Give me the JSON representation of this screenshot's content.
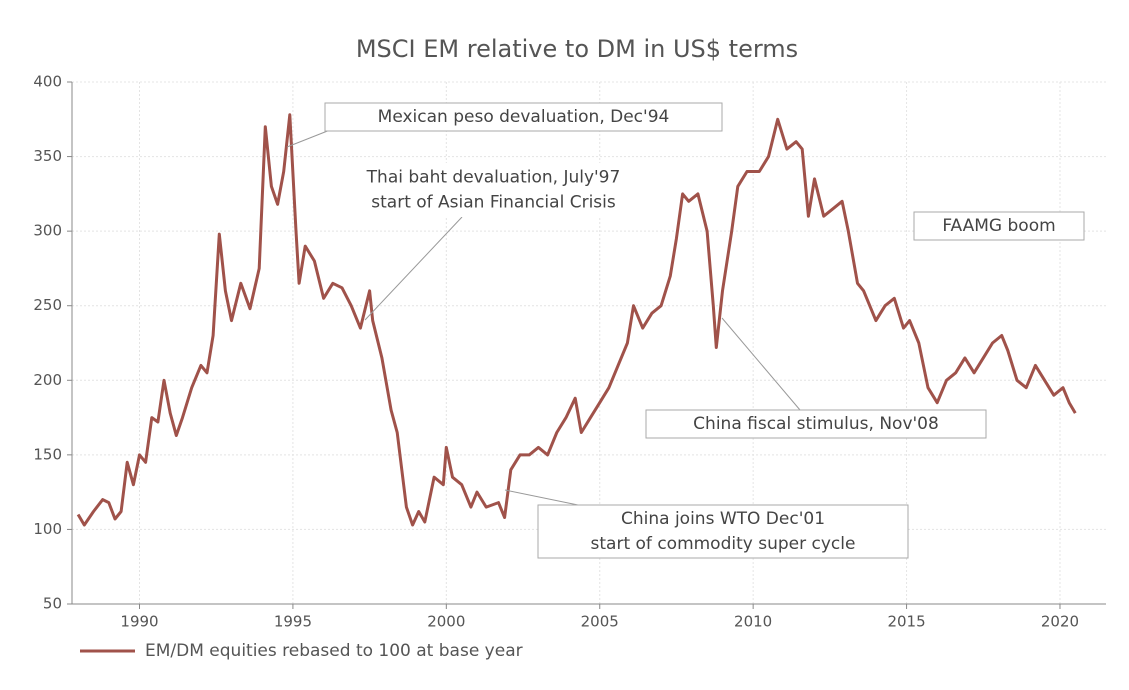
{
  "chart_data": {
    "type": "line",
    "title": "MSCI EM relative to DM in US$ terms",
    "xlim": [
      1987.8,
      2021.5
    ],
    "xticks": [
      1990,
      1995,
      2000,
      2005,
      2010,
      2015,
      2020
    ],
    "ylim": [
      50,
      400
    ],
    "yticks": [
      50,
      100,
      150,
      200,
      250,
      300,
      350,
      400
    ],
    "grid": true,
    "legend": "bottom-left",
    "annotations": [
      [
        "Mexican peso devaluation, Dec'94"
      ],
      [
        "Thai baht devaluation, July'97",
        "start of Asian Financial Crisis"
      ],
      [
        "China fiscal stimulus, Nov'08"
      ],
      [
        "China joins WTO Dec'01",
        "start of commodity super cycle"
      ],
      [
        "FAAMG boom"
      ]
    ],
    "series": [
      {
        "name": "EM/DM equities rebased to 100 at base year",
        "color": "#a0524a",
        "x": [
          1988.0,
          1988.2,
          1988.5,
          1988.8,
          1989.0,
          1989.2,
          1989.4,
          1989.6,
          1989.8,
          1990.0,
          1990.2,
          1990.4,
          1990.6,
          1990.8,
          1991.0,
          1991.2,
          1991.4,
          1991.7,
          1992.0,
          1992.2,
          1992.4,
          1992.6,
          1992.8,
          1993.0,
          1993.3,
          1993.6,
          1993.9,
          1994.1,
          1994.3,
          1994.5,
          1994.7,
          1994.9,
          1995.1,
          1995.2,
          1995.4,
          1995.7,
          1996.0,
          1996.3,
          1996.6,
          1996.9,
          1997.2,
          1997.5,
          1997.6,
          1997.9,
          1998.2,
          1998.4,
          1998.7,
          1998.9,
          1999.1,
          1999.3,
          1999.6,
          1999.9,
          2000.0,
          2000.2,
          2000.5,
          2000.8,
          2001.0,
          2001.3,
          2001.7,
          2001.9,
          2002.1,
          2002.4,
          2002.7,
          2003.0,
          2003.3,
          2003.6,
          2003.9,
          2004.2,
          2004.4,
          2004.7,
          2005.0,
          2005.3,
          2005.6,
          2005.9,
          2006.1,
          2006.4,
          2006.7,
          2007.0,
          2007.3,
          2007.5,
          2007.7,
          2007.9,
          2008.2,
          2008.5,
          2008.7,
          2008.8,
          2009.0,
          2009.3,
          2009.5,
          2009.8,
          2010.2,
          2010.5,
          2010.8,
          2011.1,
          2011.4,
          2011.6,
          2011.8,
          2012.0,
          2012.3,
          2012.6,
          2012.9,
          2013.1,
          2013.4,
          2013.6,
          2014.0,
          2014.3,
          2014.6,
          2014.9,
          2015.1,
          2015.4,
          2015.7,
          2016.0,
          2016.3,
          2016.6,
          2016.9,
          2017.2,
          2017.5,
          2017.8,
          2018.1,
          2018.3,
          2018.6,
          2018.9,
          2019.2,
          2019.5,
          2019.8,
          2020.1,
          2020.3,
          2020.5
        ],
        "values": [
          110,
          103,
          112,
          120,
          118,
          107,
          112,
          145,
          130,
          150,
          145,
          175,
          172,
          200,
          178,
          163,
          175,
          195,
          210,
          205,
          230,
          298,
          260,
          240,
          265,
          248,
          275,
          370,
          330,
          318,
          340,
          378,
          300,
          265,
          290,
          280,
          255,
          265,
          262,
          250,
          235,
          260,
          240,
          215,
          180,
          165,
          115,
          103,
          112,
          105,
          135,
          130,
          155,
          135,
          130,
          115,
          125,
          115,
          118,
          108,
          140,
          150,
          150,
          155,
          150,
          165,
          175,
          188,
          165,
          175,
          185,
          195,
          210,
          225,
          250,
          235,
          245,
          250,
          270,
          295,
          325,
          320,
          325,
          300,
          250,
          222,
          260,
          300,
          330,
          340,
          340,
          350,
          375,
          355,
          360,
          355,
          310,
          335,
          310,
          315,
          320,
          300,
          265,
          260,
          240,
          250,
          255,
          235,
          240,
          225,
          195,
          185,
          200,
          205,
          215,
          205,
          215,
          225,
          230,
          220,
          200,
          195,
          210,
          200,
          190,
          195,
          185,
          178
        ]
      }
    ]
  }
}
